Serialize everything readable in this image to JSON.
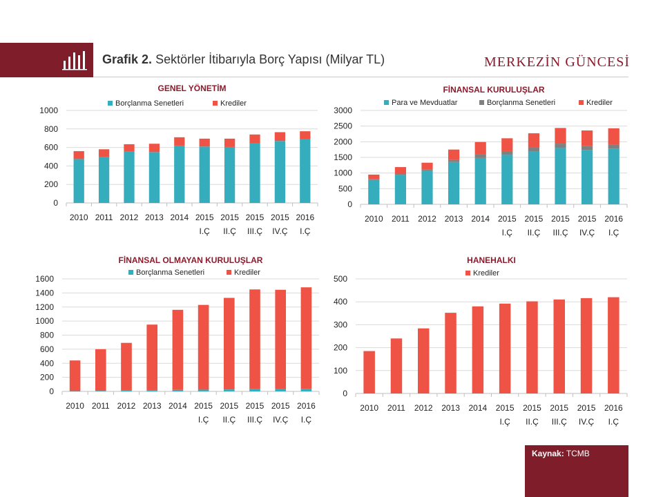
{
  "header": {
    "grafik_label": "Grafik 2.",
    "title": "Sektörler İtibarıyla Borç Yapısı (Milyar TL)",
    "brand": "MERKEZİN GÜNCESİ",
    "icon": "bar-chart-icon"
  },
  "source": {
    "label": "Kaynak:",
    "value": "TCMB"
  },
  "colors": {
    "teal": "#35adbd",
    "red": "#ee5345",
    "gray": "#808080",
    "brand": "#7f1d2b"
  },
  "chart_data": [
    {
      "id": "genel",
      "type": "bar",
      "stacked": true,
      "title": "GENEL YÖNETİM",
      "categories": [
        "2010",
        "2011",
        "2012",
        "2013",
        "2014",
        "2015 I.Ç",
        "2015 II.Ç",
        "2015 III.Ç",
        "2015 IV.Ç",
        "2016 I.Ç"
      ],
      "ylim": [
        0,
        1000
      ],
      "yticks": [
        0,
        200,
        400,
        600,
        800,
        1000
      ],
      "grid": true,
      "legend": "top",
      "series": [
        {
          "name": "Borçlanma Senetleri",
          "color": "#35adbd",
          "values": [
            475,
            495,
            555,
            550,
            620,
            610,
            605,
            645,
            670,
            690
          ]
        },
        {
          "name": "Krediler",
          "color": "#ee5345",
          "values": [
            85,
            85,
            80,
            90,
            90,
            85,
            90,
            95,
            95,
            85
          ]
        }
      ]
    },
    {
      "id": "finansal",
      "type": "bar",
      "stacked": true,
      "title": "FİNANSAL KURULUŞLAR",
      "categories": [
        "2010",
        "2011",
        "2012",
        "2013",
        "2014",
        "2015 I.Ç",
        "2015 II.Ç",
        "2015 III.Ç",
        "2015 IV.Ç",
        "2016 I.Ç"
      ],
      "ylim": [
        0,
        3000
      ],
      "yticks": [
        0,
        500,
        1000,
        1500,
        2000,
        2500,
        3000
      ],
      "grid": true,
      "legend": "top",
      "series": [
        {
          "name": "Para ve Mevduatlar",
          "color": "#35adbd",
          "values": [
            780,
            940,
            1080,
            1350,
            1480,
            1580,
            1680,
            1800,
            1740,
            1780
          ]
        },
        {
          "name": "Borçlanma Senetleri",
          "color": "#808080",
          "values": [
            20,
            30,
            40,
            70,
            110,
            120,
            130,
            140,
            120,
            130
          ]
        },
        {
          "name": "Krediler",
          "color": "#ee5345",
          "values": [
            150,
            220,
            210,
            330,
            400,
            410,
            460,
            500,
            500,
            520
          ]
        }
      ]
    },
    {
      "id": "finansal-olmayan",
      "type": "bar",
      "stacked": true,
      "title": "FİNANSAL OLMAYAN KURULUŞLAR",
      "categories": [
        "2010",
        "2011",
        "2012",
        "2013",
        "2014",
        "2015 I.Ç",
        "2015 II.Ç",
        "2015 III.Ç",
        "2015 IV.Ç",
        "2016 I.Ç"
      ],
      "ylim": [
        0,
        1600
      ],
      "yticks": [
        0,
        200,
        400,
        600,
        800,
        1000,
        1200,
        1400,
        1600
      ],
      "grid": true,
      "legend": "top",
      "series": [
        {
          "name": "Borçlanma Senetleri",
          "color": "#35adbd",
          "values": [
            5,
            8,
            12,
            18,
            22,
            25,
            28,
            32,
            35,
            38
          ]
        },
        {
          "name": "Krediler",
          "color": "#ee5345",
          "values": [
            435,
            592,
            678,
            932,
            1138,
            1205,
            1302,
            1418,
            1410,
            1442
          ]
        }
      ]
    },
    {
      "id": "hanehalki",
      "type": "bar",
      "stacked": true,
      "title": "HANEHALKI",
      "categories": [
        "2010",
        "2011",
        "2012",
        "2013",
        "2014",
        "2015 I.Ç",
        "2015 II.Ç",
        "2015 III.Ç",
        "2015 IV.Ç",
        "2016 I.Ç"
      ],
      "ylim": [
        0,
        500
      ],
      "yticks": [
        0,
        100,
        200,
        300,
        400,
        500
      ],
      "grid": true,
      "legend": "top",
      "series": [
        {
          "name": "Krediler",
          "color": "#ee5345",
          "values": [
            185,
            240,
            284,
            352,
            380,
            392,
            402,
            410,
            416,
            420
          ]
        }
      ]
    }
  ]
}
